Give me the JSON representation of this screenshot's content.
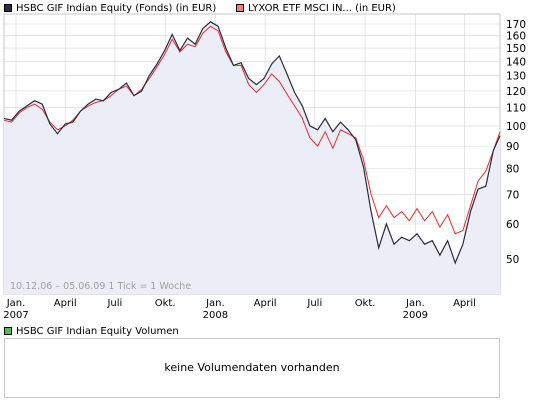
{
  "legend": {
    "series1": "HSBC GIF Indian Equity (Fonds) (in EUR)",
    "series2": "LYXOR ETF MSCI IN... (in EUR)",
    "volume": "HSBC GIF Indian Equity Volumen"
  },
  "colors": {
    "series1": "#2a2a40",
    "series1_fill": "#eceef7",
    "series2": "#e03030",
    "series2_swatch": "#f08080",
    "volume_swatch": "#55bb55",
    "grid": "#d6d6d6"
  },
  "volume_text": "keine Volumendaten vorhanden",
  "range_text": "10.12.06 – 05.06.09   1 Tick = 1 Woche",
  "chart_data": {
    "type": "line",
    "x_range": [
      "2006-12-10",
      "2009-06-05"
    ],
    "y_scale": "log",
    "ylim": [
      40,
      180
    ],
    "y_ticks": [
      50,
      60,
      70,
      80,
      90,
      100,
      110,
      120,
      130,
      140,
      150,
      160,
      170
    ],
    "x_ticks": [
      {
        "label": "Jan.",
        "sub": "2007",
        "date": "2007-01-01"
      },
      {
        "label": "April",
        "sub": "",
        "date": "2007-04-01"
      },
      {
        "label": "Juli",
        "sub": "",
        "date": "2007-07-01"
      },
      {
        "label": "Okt.",
        "sub": "",
        "date": "2007-10-01"
      },
      {
        "label": "Jan.",
        "sub": "2008",
        "date": "2008-01-01"
      },
      {
        "label": "April",
        "sub": "",
        "date": "2008-04-01"
      },
      {
        "label": "Juli",
        "sub": "",
        "date": "2008-07-01"
      },
      {
        "label": "Okt.",
        "sub": "",
        "date": "2008-10-01"
      },
      {
        "label": "Jan.",
        "sub": "2009",
        "date": "2009-01-01"
      },
      {
        "label": "April",
        "sub": "",
        "date": "2009-04-01"
      }
    ],
    "series": [
      {
        "name": "HSBC GIF Indian Equity (Fonds) (in EUR)",
        "points": [
          [
            "2006-12-10",
            104
          ],
          [
            "2006-12-24",
            103
          ],
          [
            "2007-01-07",
            108
          ],
          [
            "2007-01-21",
            111
          ],
          [
            "2007-02-04",
            114
          ],
          [
            "2007-02-18",
            112
          ],
          [
            "2007-03-04",
            101
          ],
          [
            "2007-03-18",
            96
          ],
          [
            "2007-04-01",
            101
          ],
          [
            "2007-04-15",
            102
          ],
          [
            "2007-04-29",
            108
          ],
          [
            "2007-05-13",
            112
          ],
          [
            "2007-05-27",
            115
          ],
          [
            "2007-06-10",
            114
          ],
          [
            "2007-06-24",
            119
          ],
          [
            "2007-07-08",
            121
          ],
          [
            "2007-07-22",
            125
          ],
          [
            "2007-08-05",
            117
          ],
          [
            "2007-08-19",
            120
          ],
          [
            "2007-09-02",
            130
          ],
          [
            "2007-09-16",
            138
          ],
          [
            "2007-09-30",
            148
          ],
          [
            "2007-10-14",
            161
          ],
          [
            "2007-10-28",
            148
          ],
          [
            "2007-11-11",
            158
          ],
          [
            "2007-11-25",
            153
          ],
          [
            "2007-12-09",
            166
          ],
          [
            "2007-12-23",
            172
          ],
          [
            "2008-01-06",
            168
          ],
          [
            "2008-01-20",
            150
          ],
          [
            "2008-02-03",
            137
          ],
          [
            "2008-02-17",
            139
          ],
          [
            "2008-03-02",
            128
          ],
          [
            "2008-03-16",
            124
          ],
          [
            "2008-03-30",
            128
          ],
          [
            "2008-04-13",
            138
          ],
          [
            "2008-04-27",
            144
          ],
          [
            "2008-05-11",
            131
          ],
          [
            "2008-05-25",
            119
          ],
          [
            "2008-06-08",
            111
          ],
          [
            "2008-06-22",
            100
          ],
          [
            "2008-07-06",
            98
          ],
          [
            "2008-07-20",
            104
          ],
          [
            "2008-08-03",
            97
          ],
          [
            "2008-08-17",
            102
          ],
          [
            "2008-08-31",
            98
          ],
          [
            "2008-09-14",
            93
          ],
          [
            "2008-09-28",
            81
          ],
          [
            "2008-10-12",
            64
          ],
          [
            "2008-10-26",
            53
          ],
          [
            "2008-11-09",
            60
          ],
          [
            "2008-11-23",
            54
          ],
          [
            "2008-12-07",
            56
          ],
          [
            "2008-12-21",
            55
          ],
          [
            "2009-01-04",
            57
          ],
          [
            "2009-01-18",
            54
          ],
          [
            "2009-02-01",
            55
          ],
          [
            "2009-02-15",
            51
          ],
          [
            "2009-03-01",
            55
          ],
          [
            "2009-03-15",
            49
          ],
          [
            "2009-03-29",
            54
          ],
          [
            "2009-04-12",
            64
          ],
          [
            "2009-04-26",
            72
          ],
          [
            "2009-05-10",
            73
          ],
          [
            "2009-05-24",
            88
          ],
          [
            "2009-06-05",
            95
          ]
        ]
      },
      {
        "name": "LYXOR ETF MSCI IN... (in EUR)",
        "points": [
          [
            "2006-12-10",
            103
          ],
          [
            "2006-12-24",
            102
          ],
          [
            "2007-01-07",
            107
          ],
          [
            "2007-01-21",
            110
          ],
          [
            "2007-02-04",
            112
          ],
          [
            "2007-02-18",
            109
          ],
          [
            "2007-03-04",
            102
          ],
          [
            "2007-03-18",
            98
          ],
          [
            "2007-04-01",
            100
          ],
          [
            "2007-04-15",
            103
          ],
          [
            "2007-04-29",
            108
          ],
          [
            "2007-05-13",
            111
          ],
          [
            "2007-05-27",
            113
          ],
          [
            "2007-06-10",
            114
          ],
          [
            "2007-06-24",
            117
          ],
          [
            "2007-07-08",
            121
          ],
          [
            "2007-07-22",
            123
          ],
          [
            "2007-08-05",
            117
          ],
          [
            "2007-08-19",
            121
          ],
          [
            "2007-09-02",
            128
          ],
          [
            "2007-09-16",
            136
          ],
          [
            "2007-09-30",
            145
          ],
          [
            "2007-10-14",
            157
          ],
          [
            "2007-10-28",
            147
          ],
          [
            "2007-11-11",
            153
          ],
          [
            "2007-11-25",
            151
          ],
          [
            "2007-12-09",
            162
          ],
          [
            "2007-12-23",
            168
          ],
          [
            "2008-01-06",
            164
          ],
          [
            "2008-01-20",
            147
          ],
          [
            "2008-02-03",
            137
          ],
          [
            "2008-02-17",
            137
          ],
          [
            "2008-03-02",
            124
          ],
          [
            "2008-03-16",
            119
          ],
          [
            "2008-03-30",
            124
          ],
          [
            "2008-04-13",
            131
          ],
          [
            "2008-04-27",
            126
          ],
          [
            "2008-05-11",
            118
          ],
          [
            "2008-05-25",
            111
          ],
          [
            "2008-06-08",
            104
          ],
          [
            "2008-06-22",
            94
          ],
          [
            "2008-07-06",
            90
          ],
          [
            "2008-07-20",
            97
          ],
          [
            "2008-08-03",
            89
          ],
          [
            "2008-08-17",
            98
          ],
          [
            "2008-08-31",
            96
          ],
          [
            "2008-09-14",
            94
          ],
          [
            "2008-09-28",
            84
          ],
          [
            "2008-10-12",
            70
          ],
          [
            "2008-10-26",
            62
          ],
          [
            "2008-11-09",
            66
          ],
          [
            "2008-11-23",
            62
          ],
          [
            "2008-12-07",
            64
          ],
          [
            "2008-12-21",
            61
          ],
          [
            "2009-01-04",
            65
          ],
          [
            "2009-01-18",
            61
          ],
          [
            "2009-02-01",
            64
          ],
          [
            "2009-02-15",
            59
          ],
          [
            "2009-03-01",
            63
          ],
          [
            "2009-03-15",
            57
          ],
          [
            "2009-03-29",
            58
          ],
          [
            "2009-04-12",
            66
          ],
          [
            "2009-04-26",
            75
          ],
          [
            "2009-05-10",
            79
          ],
          [
            "2009-05-24",
            88
          ],
          [
            "2009-06-05",
            97
          ]
        ]
      }
    ]
  }
}
